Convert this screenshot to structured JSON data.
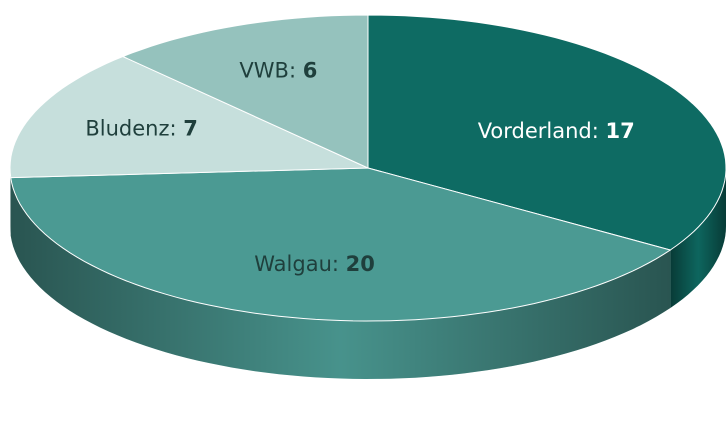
{
  "chart_data": {
    "type": "pie",
    "three_d": true,
    "categories": [
      "Vorderland",
      "Walgau",
      "Bludenz",
      "VWB"
    ],
    "separator": ": ",
    "values": [
      17,
      20,
      7,
      6
    ],
    "colors": [
      "#0e6b63",
      "#4b9a93",
      "#c6dfdc",
      "#95c2bd"
    ],
    "label_colors": [
      "#ffffff",
      "#1f3f3c",
      "#1f3f3c",
      "#1f3f3c"
    ],
    "start_angle": 0,
    "direction": "clockwise"
  }
}
